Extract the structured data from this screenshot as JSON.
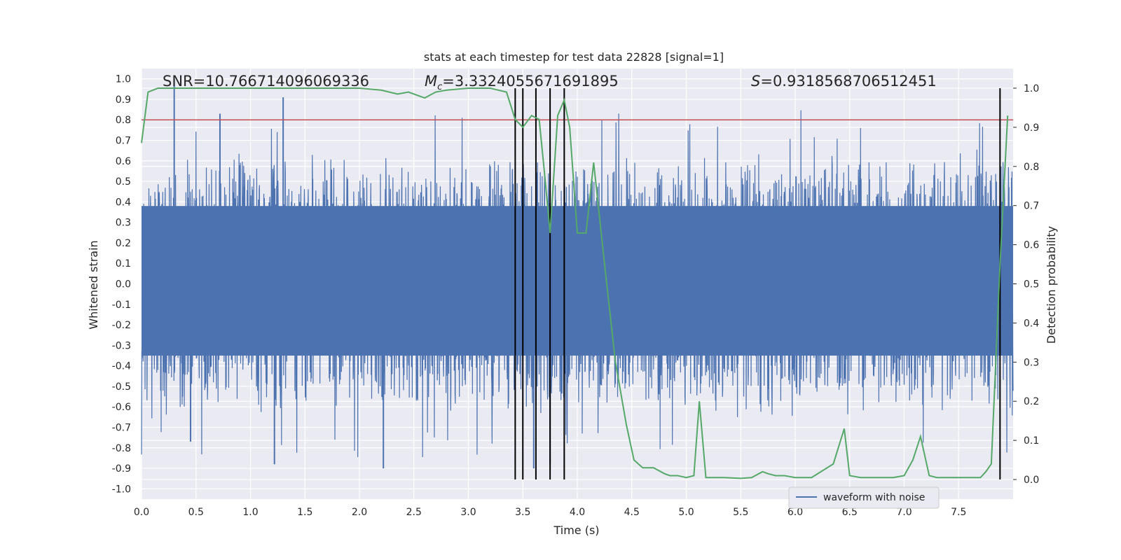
{
  "chart_data": {
    "type": "line",
    "title": "stats at each timestep for test data 22828 [signal=1]",
    "xlabel": "Time (s)",
    "ylabel_left": "Whitened strain",
    "ylabel_right": "Detection probability",
    "xlim": [
      0.0,
      8.0
    ],
    "ylim_left": [
      -1.05,
      1.05
    ],
    "ylim_right": [
      -0.05,
      1.05
    ],
    "x_ticks": [
      "0.0",
      "0.5",
      "1.0",
      "1.5",
      "2.0",
      "2.5",
      "3.0",
      "3.5",
      "4.0",
      "4.5",
      "5.0",
      "5.5",
      "6.0",
      "6.5",
      "7.0",
      "7.5"
    ],
    "y_left_ticks": [
      "1.0",
      "0.9",
      "0.8",
      "0.7",
      "0.6",
      "0.5",
      "0.4",
      "0.3",
      "0.2",
      "0.1",
      "0.0",
      "-0.1",
      "-0.2",
      "-0.3",
      "-0.4",
      "-0.5",
      "-0.6",
      "-0.7",
      "-0.8",
      "-0.9",
      "-1.0"
    ],
    "y_right_ticks": [
      "1.0",
      "0.9",
      "0.8",
      "0.7",
      "0.6",
      "0.5",
      "0.4",
      "0.3",
      "0.2",
      "0.1",
      "0.0"
    ],
    "annotations": {
      "snr_label": "SNR=10.766714096069336",
      "mc_symbol": "M",
      "mc_sub": "c",
      "mc_value": "=3.3324055671691895",
      "s_symbol": "S",
      "s_value": "=0.9318568706512451"
    },
    "threshold": {
      "value": 0.8,
      "color": "#c44e52"
    },
    "waveform": {
      "name": "waveform with noise",
      "color": "#4c72b0",
      "typical_envelope": 0.6,
      "notable_peaks": [
        {
          "t": 0.3,
          "v": 1.0
        },
        {
          "t": 0.72,
          "v": 0.83
        },
        {
          "t": 1.3,
          "v": 0.91
        },
        {
          "t": 0.45,
          "v": -0.77
        },
        {
          "t": 1.22,
          "v": -0.88
        },
        {
          "t": 2.22,
          "v": -0.9
        },
        {
          "t": 3.6,
          "v": -0.9
        },
        {
          "t": 3.75,
          "v": -0.88
        }
      ]
    },
    "detection_probability": {
      "name": "detection probability",
      "color": "#55a868",
      "x": [
        0.0,
        0.06,
        0.15,
        0.25,
        0.5,
        1.0,
        1.5,
        2.0,
        2.2,
        2.35,
        2.45,
        2.55,
        2.6,
        2.7,
        2.8,
        3.0,
        3.2,
        3.35,
        3.43,
        3.5,
        3.58,
        3.65,
        3.7,
        3.75,
        3.82,
        3.88,
        3.93,
        4.0,
        4.08,
        4.15,
        4.25,
        4.35,
        4.45,
        4.52,
        4.6,
        4.7,
        4.8,
        4.85,
        4.92,
        5.0,
        5.07,
        5.12,
        5.18,
        5.25,
        5.35,
        5.5,
        5.6,
        5.7,
        5.75,
        5.82,
        5.9,
        6.0,
        6.15,
        6.35,
        6.45,
        6.5,
        6.6,
        6.75,
        6.9,
        7.0,
        7.08,
        7.15,
        7.23,
        7.3,
        7.4,
        7.5,
        7.6,
        7.7,
        7.75,
        7.8,
        7.88,
        7.95
      ],
      "y": [
        0.86,
        0.99,
        1.0,
        1.0,
        1.0,
        1.0,
        1.0,
        1.0,
        0.995,
        0.985,
        0.99,
        0.98,
        0.975,
        0.99,
        0.995,
        1.0,
        1.0,
        0.99,
        0.92,
        0.9,
        0.93,
        0.92,
        0.78,
        0.63,
        0.93,
        0.97,
        0.9,
        0.63,
        0.63,
        0.81,
        0.55,
        0.3,
        0.14,
        0.05,
        0.03,
        0.03,
        0.015,
        0.01,
        0.01,
        0.005,
        0.01,
        0.2,
        0.005,
        0.005,
        0.005,
        0.003,
        0.005,
        0.02,
        0.015,
        0.01,
        0.01,
        0.005,
        0.005,
        0.04,
        0.13,
        0.01,
        0.005,
        0.005,
        0.005,
        0.01,
        0.05,
        0.11,
        0.01,
        0.005,
        0.005,
        0.005,
        0.005,
        0.005,
        0.02,
        0.04,
        0.55,
        0.93
      ]
    },
    "vertical_markers_s": [
      3.43,
      3.5,
      3.62,
      3.75,
      3.88,
      7.88
    ],
    "legend": {
      "position": "lower-center-right",
      "entries": [
        "waveform with noise"
      ]
    }
  }
}
